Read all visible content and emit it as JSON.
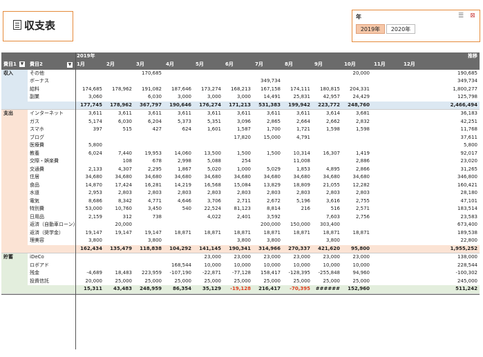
{
  "title": "収支表",
  "slicer": {
    "header": "年",
    "items": [
      "2019年",
      "2020年"
    ],
    "selected": 0
  },
  "headers": {
    "year": "2019年",
    "trend": "推移",
    "field1": "費目1",
    "field2": "費目2",
    "months": [
      "1月",
      "2月",
      "3月",
      "4月",
      "5月",
      "6月",
      "7月",
      "8月",
      "9月",
      "10月",
      "11月",
      "12月"
    ]
  },
  "groups": [
    {
      "name": "収入",
      "rows": [
        {
          "label": "その他",
          "values": [
            "",
            "",
            "170,685",
            "",
            "",
            "",
            "",
            "",
            "",
            "20,000",
            "",
            ""
          ],
          "total": "190,685"
        },
        {
          "label": "ボーナス",
          "values": [
            "",
            "",
            "",
            "",
            "",
            "",
            "349,734",
            "",
            "",
            "",
            "",
            ""
          ],
          "total": "349,734"
        },
        {
          "label": "給料",
          "values": [
            "174,685",
            "178,962",
            "191,082",
            "187,646",
            "173,274",
            "168,213",
            "167,158",
            "174,111",
            "180,815",
            "204,331",
            "",
            ""
          ],
          "total": "1,800,277"
        },
        {
          "label": "副業",
          "values": [
            "3,060",
            "",
            "6,030",
            "3,000",
            "3,000",
            "3,000",
            "14,491",
            "25,831",
            "42,957",
            "24,429",
            "",
            ""
          ],
          "total": "125,798"
        }
      ],
      "subtotal": {
        "values": [
          "177,745",
          "178,962",
          "367,797",
          "190,646",
          "176,274",
          "171,213",
          "531,383",
          "199,942",
          "223,772",
          "248,760",
          "",
          ""
        ],
        "total": "2,466,494"
      }
    },
    {
      "name": "支出",
      "rows": [
        {
          "label": "インターネット",
          "values": [
            "3,611",
            "3,611",
            "3,611",
            "3,611",
            "3,611",
            "3,611",
            "3,611",
            "3,611",
            "3,614",
            "3,681",
            "",
            ""
          ],
          "total": "36,183"
        },
        {
          "label": "ガス",
          "values": [
            "5,174",
            "6,030",
            "6,204",
            "5,373",
            "5,351",
            "3,096",
            "2,865",
            "2,664",
            "2,662",
            "2,832",
            "",
            ""
          ],
          "total": "42,251"
        },
        {
          "label": "スマホ",
          "values": [
            "397",
            "515",
            "427",
            "624",
            "1,601",
            "1,587",
            "1,700",
            "1,721",
            "1,598",
            "1,598",
            "",
            ""
          ],
          "total": "11,768"
        },
        {
          "label": "ブログ",
          "values": [
            "",
            "",
            "",
            "",
            "",
            "17,820",
            "15,000",
            "4,791",
            "",
            "",
            "",
            ""
          ],
          "total": "37,611"
        },
        {
          "label": "医療費",
          "values": [
            "5,800",
            "",
            "",
            "",
            "",
            "",
            "",
            "",
            "",
            "",
            "",
            ""
          ],
          "total": "5,800"
        },
        {
          "label": "教養",
          "values": [
            "6,024",
            "7,440",
            "19,953",
            "14,060",
            "13,500",
            "1,500",
            "1,500",
            "10,314",
            "16,307",
            "1,419",
            "",
            ""
          ],
          "total": "92,017"
        },
        {
          "label": "交際・娯楽費",
          "values": [
            "",
            "108",
            "678",
            "2,998",
            "5,088",
            "254",
            "",
            "11,008",
            "",
            "2,886",
            "",
            ""
          ],
          "total": "23,020"
        },
        {
          "label": "交通費",
          "values": [
            "2,133",
            "4,307",
            "2,295",
            "1,867",
            "5,020",
            "1,000",
            "5,029",
            "1,853",
            "4,895",
            "2,866",
            "",
            ""
          ],
          "total": "31,265"
        },
        {
          "label": "住居",
          "values": [
            "34,680",
            "34,680",
            "34,680",
            "34,680",
            "34,680",
            "34,680",
            "34,680",
            "34,680",
            "34,680",
            "34,680",
            "",
            ""
          ],
          "total": "346,800"
        },
        {
          "label": "食品",
          "values": [
            "14,870",
            "17,424",
            "16,281",
            "14,219",
            "16,568",
            "15,084",
            "13,829",
            "18,809",
            "21,055",
            "12,282",
            "",
            ""
          ],
          "total": "160,421"
        },
        {
          "label": "水道",
          "values": [
            "2,953",
            "2,803",
            "2,803",
            "2,803",
            "2,803",
            "2,803",
            "2,803",
            "2,803",
            "2,803",
            "2,803",
            "",
            ""
          ],
          "total": "28,180"
        },
        {
          "label": "電気",
          "values": [
            "8,686",
            "8,342",
            "4,771",
            "4,646",
            "3,706",
            "2,711",
            "2,672",
            "5,196",
            "3,616",
            "2,755",
            "",
            ""
          ],
          "total": "47,101"
        },
        {
          "label": "特別費",
          "values": [
            "53,000",
            "10,760",
            "3,450",
            "540",
            "22,524",
            "81,123",
            "8,814",
            "216",
            "516",
            "2,571",
            "",
            ""
          ],
          "total": "183,514"
        },
        {
          "label": "日用品",
          "values": [
            "2,159",
            "312",
            "738",
            "",
            "4,022",
            "2,401",
            "3,592",
            "",
            "7,603",
            "2,756",
            "",
            ""
          ],
          "total": "23,583"
        },
        {
          "label": "返済（自動車ローン）",
          "values": [
            "",
            "20,000",
            "",
            "",
            "",
            "",
            "200,000",
            "150,000",
            "303,400",
            "",
            "",
            ""
          ],
          "total": "673,400"
        },
        {
          "label": "返済（奨学金）",
          "values": [
            "19,147",
            "19,147",
            "19,147",
            "18,871",
            "18,871",
            "18,871",
            "18,871",
            "18,871",
            "18,871",
            "18,871",
            "",
            ""
          ],
          "total": "189,538"
        },
        {
          "label": "理美容",
          "values": [
            "3,800",
            "",
            "3,800",
            "",
            "",
            "3,800",
            "3,800",
            "",
            "3,800",
            "",
            "",
            ""
          ],
          "total": "22,800"
        }
      ],
      "subtotal": {
        "values": [
          "162,434",
          "135,479",
          "118,838",
          "104,292",
          "141,145",
          "190,341",
          "314,966",
          "270,337",
          "421,620",
          "95,800",
          "",
          ""
        ],
        "total": "1,955,252"
      }
    },
    {
      "name": "貯蓄",
      "rows": [
        {
          "label": "iDeCo",
          "values": [
            "",
            "",
            "",
            "",
            "23,000",
            "23,000",
            "23,000",
            "23,000",
            "23,000",
            "23,000",
            "",
            ""
          ],
          "total": "138,000"
        },
        {
          "label": "ロボアド",
          "values": [
            "",
            "",
            "",
            "168,544",
            "10,000",
            "10,000",
            "10,000",
            "10,000",
            "10,000",
            "10,000",
            "",
            ""
          ],
          "total": "228,544"
        },
        {
          "label": "残金",
          "values": [
            "-4,689",
            "18,483",
            "223,959",
            "-107,190",
            "-22,871",
            "-77,128",
            "158,417",
            "-128,395",
            "-255,848",
            "94,960",
            "",
            ""
          ],
          "total": "-100,302"
        },
        {
          "label": "投資信託",
          "values": [
            "20,000",
            "25,000",
            "25,000",
            "25,000",
            "25,000",
            "25,000",
            "25,000",
            "25,000",
            "25,000",
            "25,000",
            "",
            ""
          ],
          "total": "245,000"
        }
      ],
      "subtotal": {
        "values": [
          "15,311",
          "43,483",
          "248,959",
          "86,354",
          "35,129",
          "-19,128",
          "216,417",
          "-70,395",
          "######",
          "152,960",
          "",
          ""
        ],
        "total": "511,242"
      }
    }
  ]
}
